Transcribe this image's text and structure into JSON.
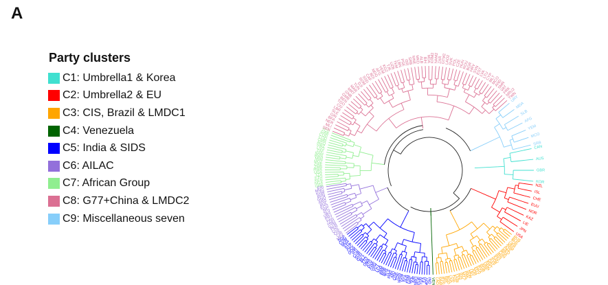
{
  "panel_label": "A",
  "legend": {
    "title": "Party clusters",
    "items": [
      {
        "id": "C1",
        "label": "C1: Umbrella1 & Korea",
        "color": "#40e0d0"
      },
      {
        "id": "C2",
        "label": "C2: Umbrella2 & EU",
        "color": "#ff0000"
      },
      {
        "id": "C3",
        "label": "C3: CIS, Brazil & LMDC1",
        "color": "#ffa500"
      },
      {
        "id": "C4",
        "label": "C4: Venezuela",
        "color": "#006400"
      },
      {
        "id": "C5",
        "label": "C5: India & SIDS",
        "color": "#0000ff"
      },
      {
        "id": "C6",
        "label": "C6: AILAC",
        "color": "#9370db"
      },
      {
        "id": "C7",
        "label": "C7: African Group",
        "color": "#90ee90"
      },
      {
        "id": "C8",
        "label": "C8: G77+China & LMDC2",
        "color": "#db7093"
      },
      {
        "id": "C9",
        "label": "C9: Miscellaneous seven",
        "color": "#87cefa"
      }
    ]
  },
  "dendrogram": {
    "type": "circular-dendrogram",
    "root_color": "#222222",
    "clusters": [
      {
        "id": "C1",
        "leaves": [
          "CAN",
          "AUS",
          "GBR",
          "KOR"
        ]
      },
      {
        "id": "C2",
        "leaves": [
          "NZL",
          "ISL",
          "CHE",
          "EUU",
          "NOR",
          "KAZ",
          "LIE",
          "JPN",
          "USA"
        ]
      },
      {
        "id": "C3",
        "leaves": [
          "RUS",
          "BLR",
          "TUR",
          "UKR",
          "ARM",
          "AZE",
          "GEO",
          "BRA",
          "CHN",
          "IRN",
          "IRQ",
          "SAU",
          "SYR",
          "QAT",
          "KWT",
          "OMN",
          "ARE",
          "BHR",
          "DZA",
          "EGY",
          "JOR",
          "LBY",
          "SDN",
          "PAK",
          "MYS",
          "IDN",
          "PHL",
          "VNM",
          "THA",
          "LKA",
          "BGD",
          "NPL",
          "BTN",
          "MMR",
          "LAO"
        ]
      },
      {
        "id": "C4",
        "leaves": [
          "VEN"
        ]
      },
      {
        "id": "C5",
        "leaves": [
          "IND",
          "MDV",
          "FJI",
          "TUV",
          "PLW",
          "NRU",
          "KIR",
          "MHL",
          "FSM",
          "SLB",
          "VUT",
          "WSM",
          "TON",
          "COK",
          "NIU",
          "PNG",
          "TLS",
          "BHS",
          "BRB",
          "JAM",
          "LCA",
          "VCT",
          "GRD",
          "KNA",
          "ATG",
          "DMA",
          "TTO",
          "BLZ",
          "GUY",
          "SUR",
          "CUB",
          "HTI",
          "DOM",
          "CPV",
          "STP",
          "SYC",
          "MUS",
          "COM",
          "SGP"
        ]
      },
      {
        "id": "C6",
        "leaves": [
          "MEX",
          "CRI",
          "CHL",
          "COL",
          "PER",
          "GTM",
          "HND",
          "PAN",
          "PRY",
          "URY",
          "SLV",
          "NIC",
          "ECU",
          "BOL",
          "ARG",
          "GNQ",
          "BRN",
          "KHM",
          "MNG",
          "ERI"
        ]
      },
      {
        "id": "C7",
        "leaves": [
          "GHA",
          "NGA",
          "KEN",
          "ETH",
          "TZA",
          "UGA",
          "RWA",
          "ZMB",
          "ZWE",
          "MOZ",
          "MWI",
          "BWA",
          "NAM",
          "ZAF",
          "LSO",
          "SWZ",
          "AGO",
          "CMR",
          "COD",
          "COG",
          "GAB",
          "TCD"
        ]
      },
      {
        "id": "C8",
        "leaves": [
          "SEN",
          "MLI",
          "NER",
          "BFA",
          "GIN",
          "SLE",
          "LBR",
          "CIV",
          "TGO",
          "BEN",
          "GMB",
          "GNB",
          "MRT",
          "MAR",
          "TUN",
          "DJI",
          "SOM",
          "SSD",
          "CAF",
          "BDI",
          "MDG",
          "AFG",
          "YEM",
          "KGZ",
          "TJK",
          "UZB",
          "TKM",
          "LBN",
          "PSE",
          "ISR",
          "SRB",
          "MNE",
          "MKD",
          "ALB",
          "BIH",
          "MDA",
          "KHM2",
          "NAM2",
          "ZAR",
          "GTM2",
          "LAO2",
          "SVK",
          "POL",
          "CZE",
          "HUN",
          "ROU",
          "BGR",
          "HRV",
          "SVN",
          "EST",
          "LVA",
          "LTU",
          "CYP",
          "MLT",
          "MCO",
          "AND",
          "SMR",
          "VAT",
          "PRK",
          "NRU2",
          "TWN"
        ]
      },
      {
        "id": "C9",
        "leaves": [
          "URY",
          "MDA",
          "SLB",
          "AFG",
          "YEM",
          "MCO",
          "SRB"
        ]
      }
    ]
  }
}
